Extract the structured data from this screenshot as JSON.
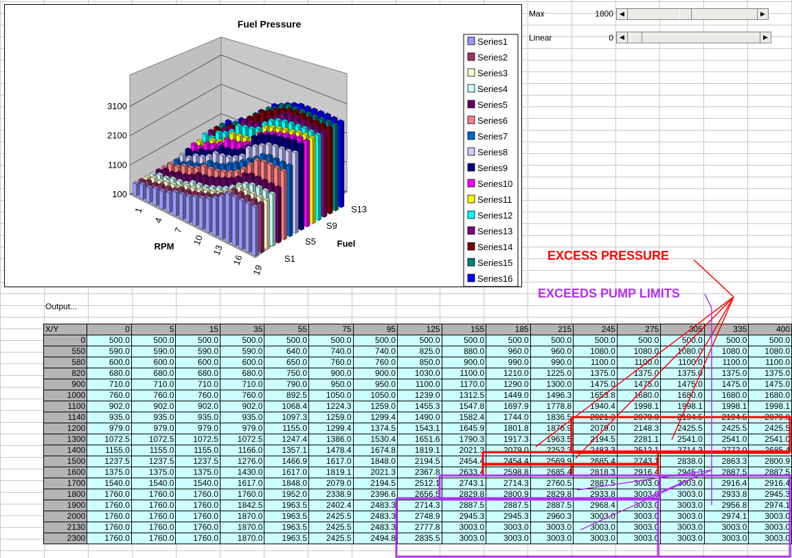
{
  "chart": {
    "title": "Fuel Pressure",
    "x_axis_title": "RPM",
    "depth_axis_title": "Fuel",
    "z_ticks": [
      "3100",
      "2100",
      "1100",
      "100"
    ],
    "x_ticks": [
      "1",
      "4",
      "7",
      "10",
      "13",
      "16",
      "19"
    ],
    "depth_ticks": [
      "S13",
      "S9",
      "S5",
      "S1"
    ]
  },
  "chart_data": {
    "type": "bar",
    "title": "Fuel Pressure",
    "xlabel": "RPM",
    "ylabel": "",
    "zlabel": "Fuel",
    "zlim": [
      100,
      3100
    ],
    "legend_position": "right",
    "series": [
      {
        "name": "Series1",
        "color": "#9999ff"
      },
      {
        "name": "Series2",
        "color": "#993366"
      },
      {
        "name": "Series3",
        "color": "#ffffcc"
      },
      {
        "name": "Series4",
        "color": "#ccffff"
      },
      {
        "name": "Series5",
        "color": "#660066"
      },
      {
        "name": "Series6",
        "color": "#ff8080"
      },
      {
        "name": "Series7",
        "color": "#0066cc"
      },
      {
        "name": "Series8",
        "color": "#ccccff"
      },
      {
        "name": "Series9",
        "color": "#000080"
      },
      {
        "name": "Series10",
        "color": "#ff00ff"
      },
      {
        "name": "Series11",
        "color": "#ffff00"
      },
      {
        "name": "Series12",
        "color": "#00ffff"
      },
      {
        "name": "Series13",
        "color": "#800080"
      },
      {
        "name": "Series14",
        "color": "#800000"
      },
      {
        "name": "Series15",
        "color": "#008080"
      },
      {
        "name": "Series16",
        "color": "#0000ff"
      }
    ]
  },
  "controls": {
    "max_label": "Max",
    "max_value": "1800",
    "max_fraction": 0.44,
    "linear_label": "Linear",
    "linear_value": "0",
    "linear_fraction": 0.02
  },
  "output_label": "Output...",
  "table": {
    "corner": "X/Y",
    "columns": [
      "0",
      "5",
      "15",
      "35",
      "55",
      "75",
      "95",
      "125",
      "155",
      "185",
      "215",
      "245",
      "275",
      "305",
      "335",
      "400"
    ],
    "rows": [
      {
        "label": "0",
        "values": [
          "500.0",
          "500.0",
          "500.0",
          "500.0",
          "500.0",
          "500.0",
          "500.0",
          "500.0",
          "500.0",
          "500.0",
          "500.0",
          "500.0",
          "500.0",
          "500.0",
          "500.0",
          "500.0"
        ]
      },
      {
        "label": "550",
        "values": [
          "590.0",
          "590.0",
          "590.0",
          "590.0",
          "640.0",
          "740.0",
          "740.0",
          "825.0",
          "880.0",
          "960.0",
          "960.0",
          "1080.0",
          "1080.0",
          "1080.0",
          "1080.0",
          "1080.0"
        ]
      },
      {
        "label": "580",
        "values": [
          "600.0",
          "600.0",
          "600.0",
          "600.0",
          "650.0",
          "760.0",
          "760.0",
          "850.0",
          "900.0",
          "990.0",
          "990.0",
          "1100.0",
          "1100.0",
          "1100.0",
          "1100.0",
          "1100.0"
        ]
      },
      {
        "label": "820",
        "values": [
          "680.0",
          "680.0",
          "680.0",
          "680.0",
          "750.0",
          "900.0",
          "900.0",
          "1030.0",
          "1100.0",
          "1210.0",
          "1225.0",
          "1375.0",
          "1375.0",
          "1375.0",
          "1375.0",
          "1375.0"
        ]
      },
      {
        "label": "900",
        "values": [
          "710.0",
          "710.0",
          "710.0",
          "710.0",
          "790.0",
          "950.0",
          "950.0",
          "1100.0",
          "1170.0",
          "1290.0",
          "1300.0",
          "1475.0",
          "1475.0",
          "1475.0",
          "1475.0",
          "1475.0"
        ]
      },
      {
        "label": "1000",
        "values": [
          "760.0",
          "760.0",
          "760.0",
          "760.0",
          "892.5",
          "1050.0",
          "1050.0",
          "1239.0",
          "1312.5",
          "1449.0",
          "1496.3",
          "1653.8",
          "1680.0",
          "1680.0",
          "1680.0",
          "1680.0"
        ]
      },
      {
        "label": "1100",
        "values": [
          "902.0",
          "902.0",
          "902.0",
          "902.0",
          "1068.4",
          "1224.3",
          "1259.0",
          "1455.3",
          "1547.8",
          "1697.9",
          "1778.8",
          "1940.4",
          "1998.1",
          "1998.1",
          "1998.1",
          "1998.1"
        ]
      },
      {
        "label": "1140",
        "values": [
          "935.0",
          "935.0",
          "935.0",
          "935.0",
          "1097.3",
          "1259.0",
          "1299.4",
          "1490.0",
          "1582.4",
          "1744.0",
          "1836.5",
          "2021.3",
          "2079.0",
          "2194.5",
          "2194.5",
          "2079.0"
        ]
      },
      {
        "label": "1200",
        "values": [
          "979.0",
          "979.0",
          "979.0",
          "979.0",
          "1155.0",
          "1299.4",
          "1374.5",
          "1543.1",
          "1645.9",
          "1801.8",
          "1876.9",
          "2079.0",
          "2148.3",
          "2425.5",
          "2425.5",
          "2425.5"
        ]
      },
      {
        "label": "1300",
        "values": [
          "1072.5",
          "1072.5",
          "1072.5",
          "1072.5",
          "1247.4",
          "1386.0",
          "1530.4",
          "1651.6",
          "1790.3",
          "1917.3",
          "1963.5",
          "2194.5",
          "2281.1",
          "2541.0",
          "2541.0",
          "2541.0"
        ]
      },
      {
        "label": "1400",
        "values": [
          "1155.0",
          "1155.0",
          "1155.0",
          "1166.0",
          "1357.1",
          "1478.4",
          "1674.8",
          "1819.1",
          "2021.3",
          "2079.0",
          "2252.3",
          "2483.3",
          "2512.1",
          "2714.3",
          "2772.0",
          "2685.4"
        ]
      },
      {
        "label": "1500",
        "values": [
          "1237.5",
          "1237.5",
          "1237.5",
          "1276.0",
          "1466.9",
          "1617.0",
          "1848.0",
          "2194.5",
          "2454.4",
          "2454.4",
          "2569.9",
          "2685.4",
          "2743.1",
          "2838.0",
          "2863.3",
          "2800.9"
        ]
      },
      {
        "label": "1600",
        "values": [
          "1375.0",
          "1375.0",
          "1375.0",
          "1430.0",
          "1617.0",
          "1819.1",
          "2021.3",
          "2367.8",
          "2633.4",
          "2598.8",
          "2685.4",
          "2818.3",
          "2916.4",
          "2945.3",
          "2887.5",
          "2887.5"
        ]
      },
      {
        "label": "1700",
        "values": [
          "1540.0",
          "1540.0",
          "1540.0",
          "1617.0",
          "1848.0",
          "2079.0",
          "2194.5",
          "2512.1",
          "2743.1",
          "2714.3",
          "2760.5",
          "2887.5",
          "3003.0",
          "3003.0",
          "2916.4",
          "2916.4"
        ]
      },
      {
        "label": "1800",
        "values": [
          "1760.0",
          "1760.0",
          "1760.0",
          "1760.0",
          "1952.0",
          "2338.9",
          "2396.6",
          "2656.5",
          "2829.8",
          "2800.9",
          "2829.8",
          "2933.8",
          "3003.0",
          "3003.0",
          "2933.8",
          "2945.3"
        ]
      },
      {
        "label": "1900",
        "values": [
          "1760.0",
          "1760.0",
          "1760.0",
          "1842.5",
          "1963.5",
          "2402.4",
          "2483.3",
          "2714.3",
          "2887.5",
          "2887.5",
          "2887.5",
          "2968.4",
          "3003.0",
          "3003.0",
          "2956.8",
          "2974.1"
        ]
      },
      {
        "label": "2000",
        "values": [
          "1760.0",
          "1760.0",
          "1760.0",
          "1870.0",
          "1963.5",
          "2425.5",
          "2483.3",
          "2748.9",
          "2945.3",
          "2945.3",
          "2960.3",
          "3003.0",
          "3003.0",
          "3003.0",
          "2974.1",
          "3003.0"
        ]
      },
      {
        "label": "2130",
        "values": [
          "1760.0",
          "1760.0",
          "1760.0",
          "1870.0",
          "1963.5",
          "2425.5",
          "2483.3",
          "2777.8",
          "3003.0",
          "3003.0",
          "3003.0",
          "3003.0",
          "3003.0",
          "3003.0",
          "3003.0",
          "3003.0"
        ]
      },
      {
        "label": "2300",
        "values": [
          "1760.0",
          "1760.0",
          "1760.0",
          "1870.0",
          "1963.5",
          "2425.5",
          "2494.8",
          "2835.5",
          "3003.0",
          "3003.0",
          "3003.0",
          "3003.0",
          "3003.0",
          "3003.0",
          "3003.0",
          "3003.0"
        ]
      }
    ]
  },
  "annotations": {
    "excess_pressure": "EXCESS PRESSURE",
    "exceeds_pump": "EXCEEDS PUMP LIMITS",
    "red": "#ff0000",
    "purple": "#b030f0"
  }
}
